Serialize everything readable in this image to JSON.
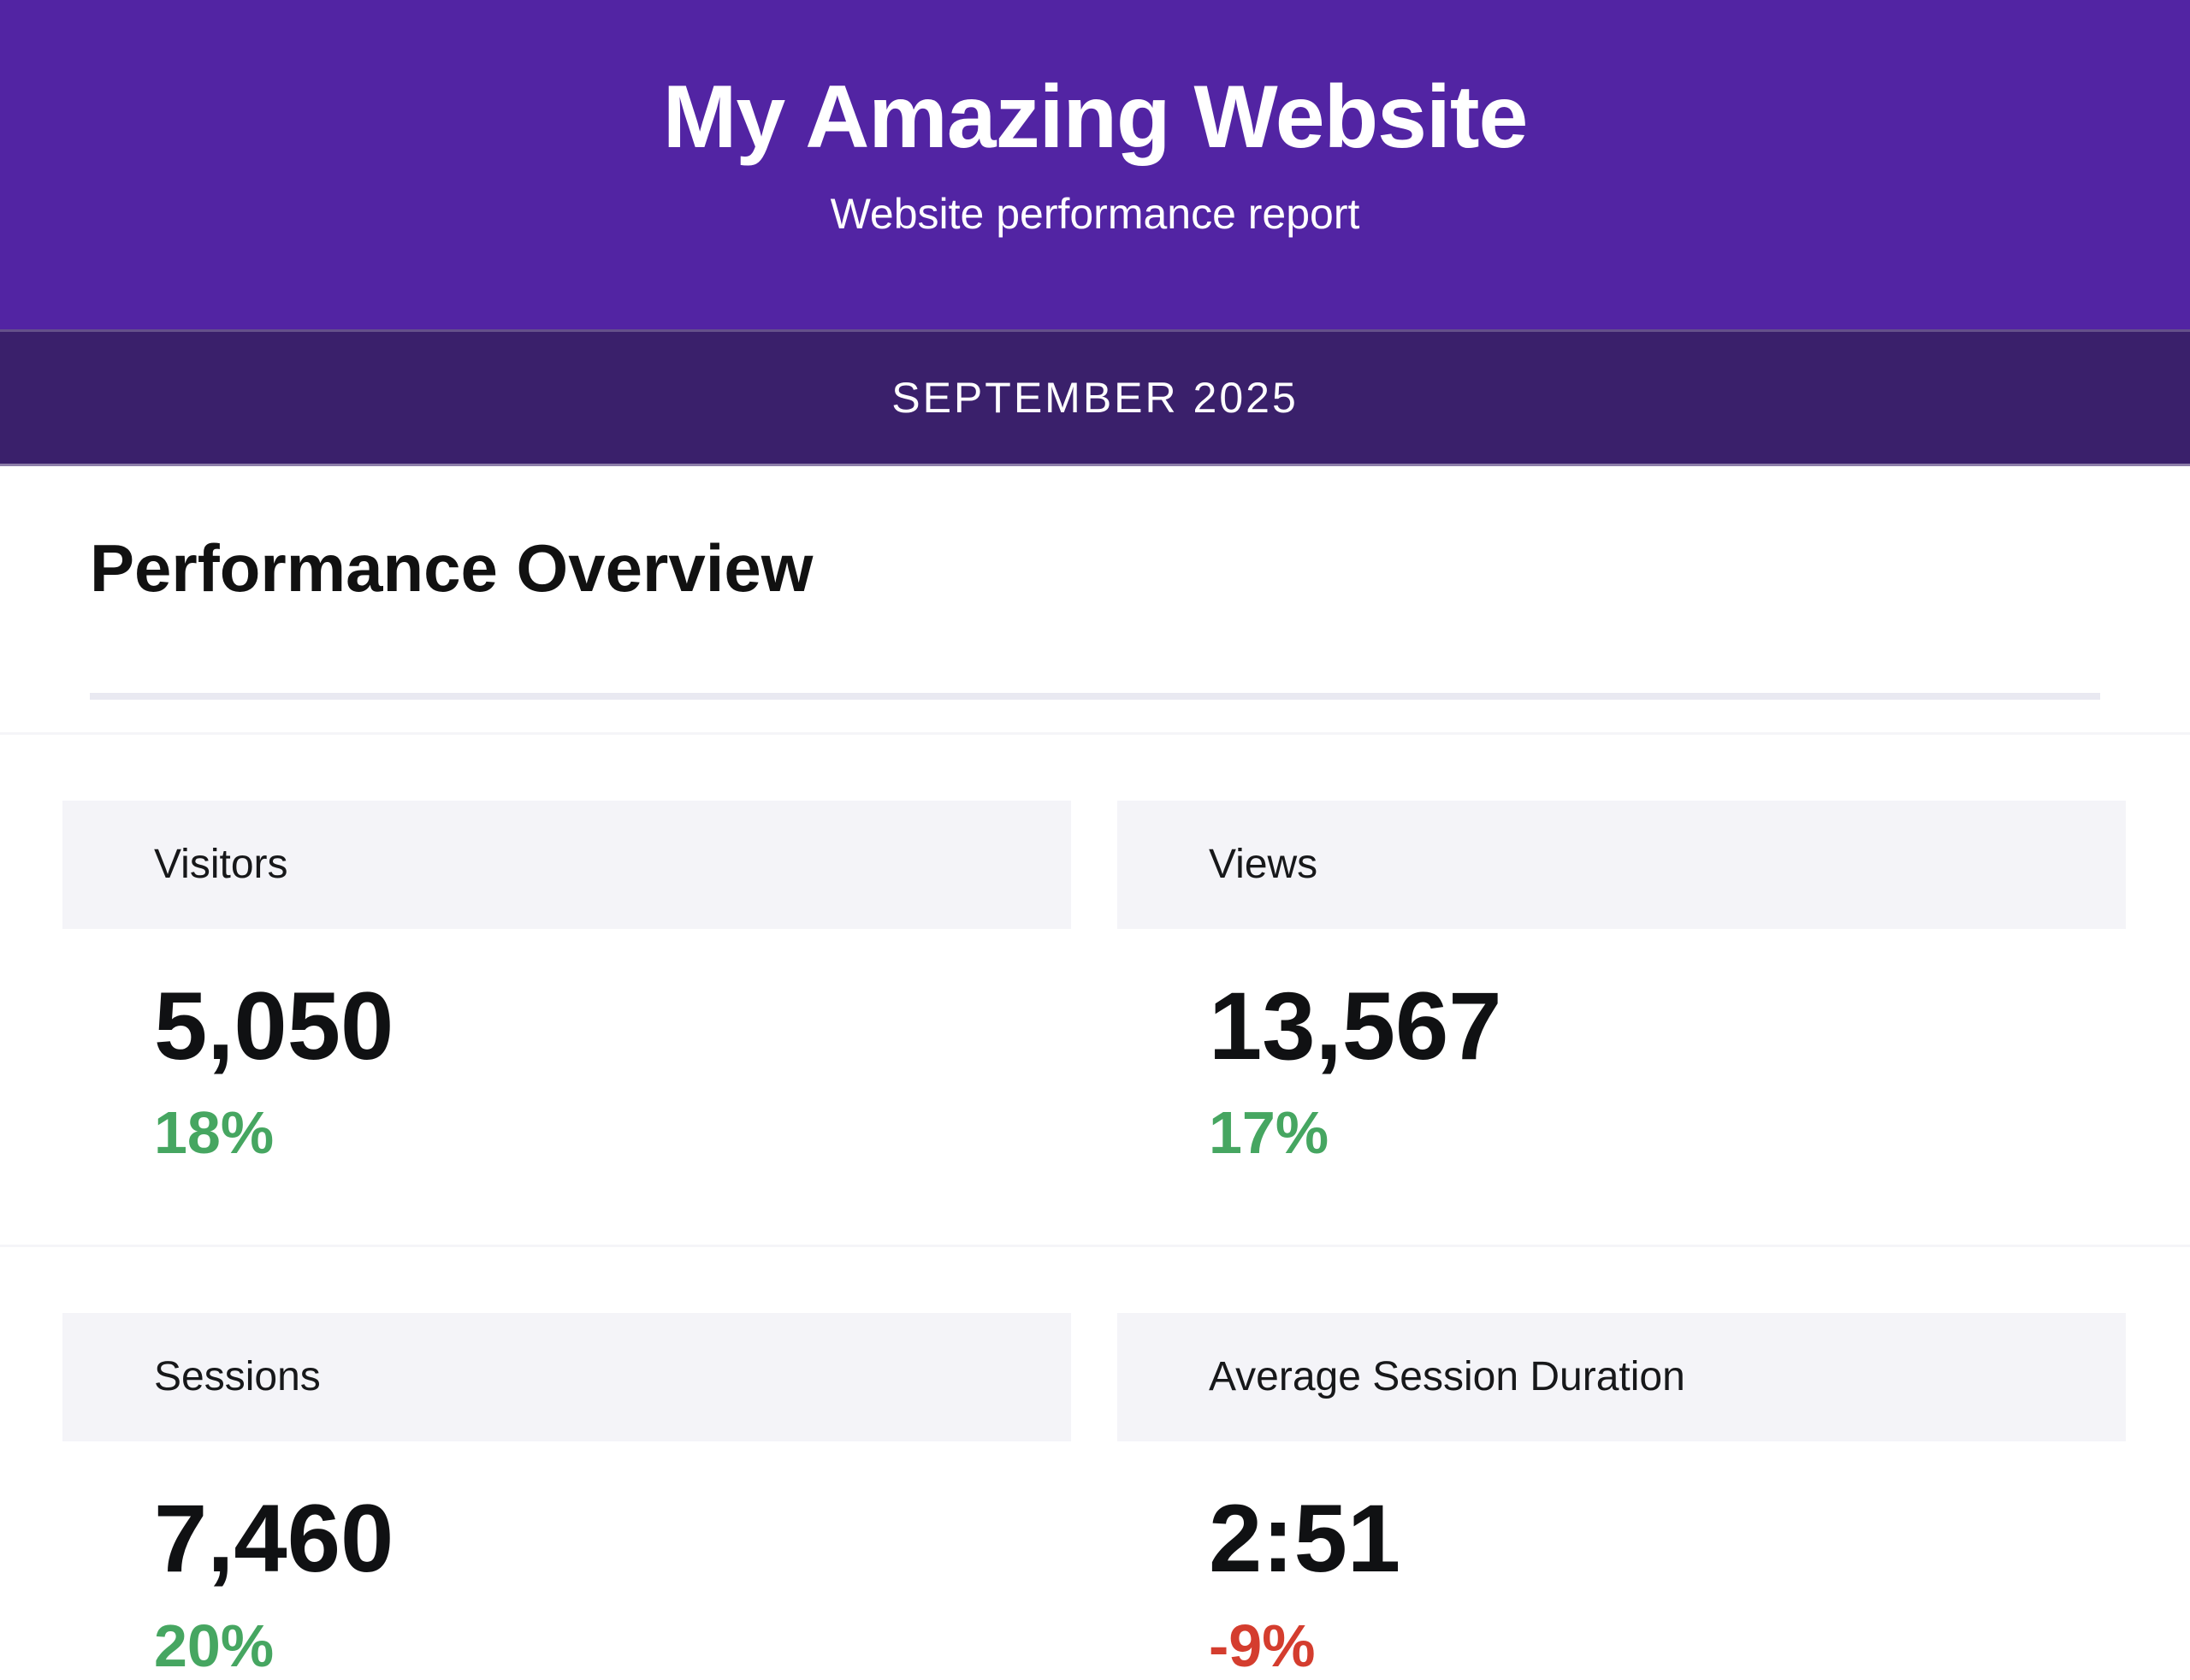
{
  "header": {
    "title": "My Amazing Website",
    "subtitle": "Website performance report",
    "period": "SEPTEMBER 2025",
    "bg_color": "#5224A3",
    "band_color": "#3A206B"
  },
  "section": {
    "title": "Performance Overview"
  },
  "metrics": [
    {
      "label": "Visitors",
      "value": "5,050",
      "delta": "18%",
      "direction": "up",
      "delta_color": "#46A661"
    },
    {
      "label": "Views",
      "value": "13,567",
      "delta": "17%",
      "direction": "up",
      "delta_color": "#46A661"
    },
    {
      "label": "Sessions",
      "value": "7,460",
      "delta": "20%",
      "direction": "up",
      "delta_color": "#46A661"
    },
    {
      "label": "Average Session Duration",
      "value": "2:51",
      "delta": "-9%",
      "direction": "down",
      "delta_color": "#D43D2E"
    }
  ],
  "colors": {
    "positive": "#46A661",
    "negative": "#D43D2E",
    "label_bar_bg": "#F4F4F8",
    "divider": "#E9E9F1"
  }
}
